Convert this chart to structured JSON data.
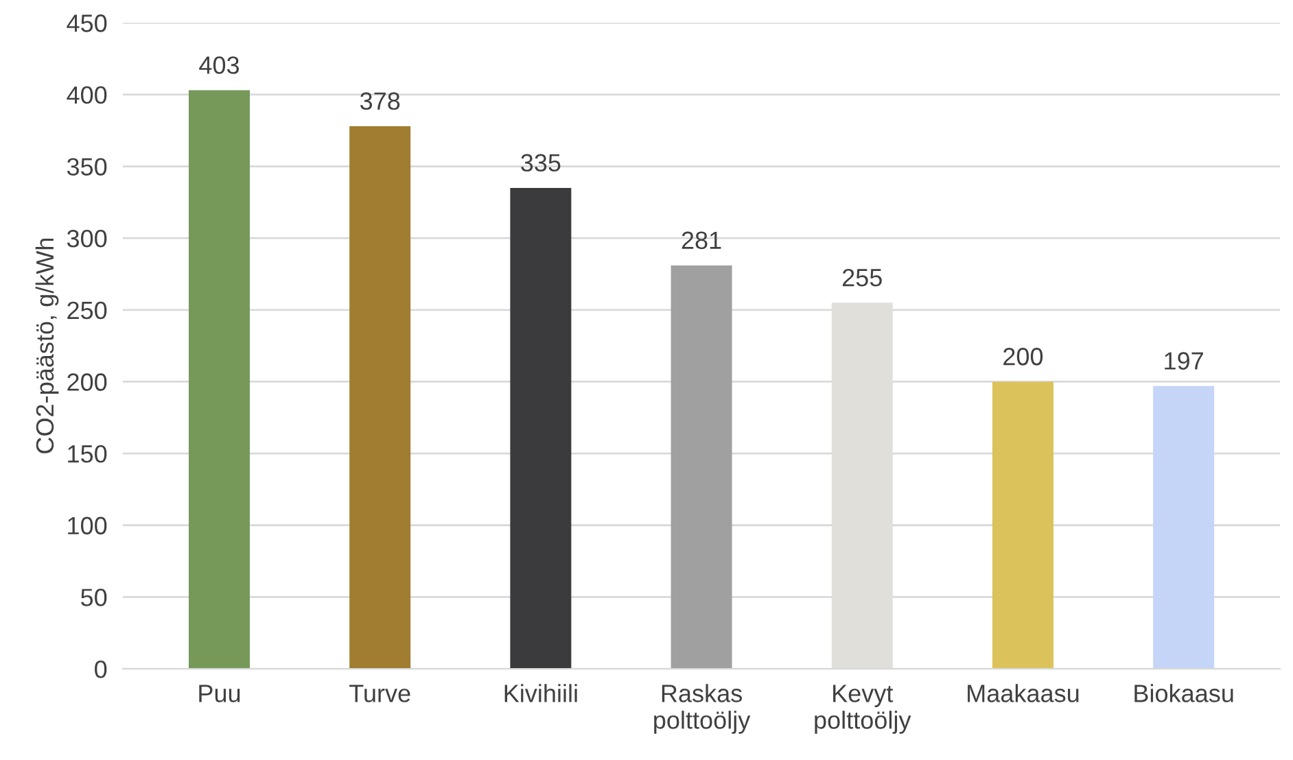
{
  "chart_data": {
    "type": "bar",
    "ylabel": "CO2-päästö, g/kWh",
    "categories": [
      "Puu",
      "Turve",
      "Kivihiili",
      "Raskas\npolttoöljy",
      "Kevyt\npolttoöljy",
      "Maakaasu",
      "Biokaasu"
    ],
    "values": [
      403,
      378,
      335,
      281,
      255,
      200,
      197
    ],
    "colors": [
      "#76995a",
      "#a07d30",
      "#3b3b3d",
      "#a0a0a0",
      "#e0dfd9",
      "#dcc25a",
      "#c5d5f7"
    ],
    "ylim": [
      0,
      450
    ],
    "yticks": [
      0,
      50,
      100,
      150,
      200,
      250,
      300,
      350,
      400,
      450
    ],
    "grid": "y",
    "data_labels": true
  }
}
